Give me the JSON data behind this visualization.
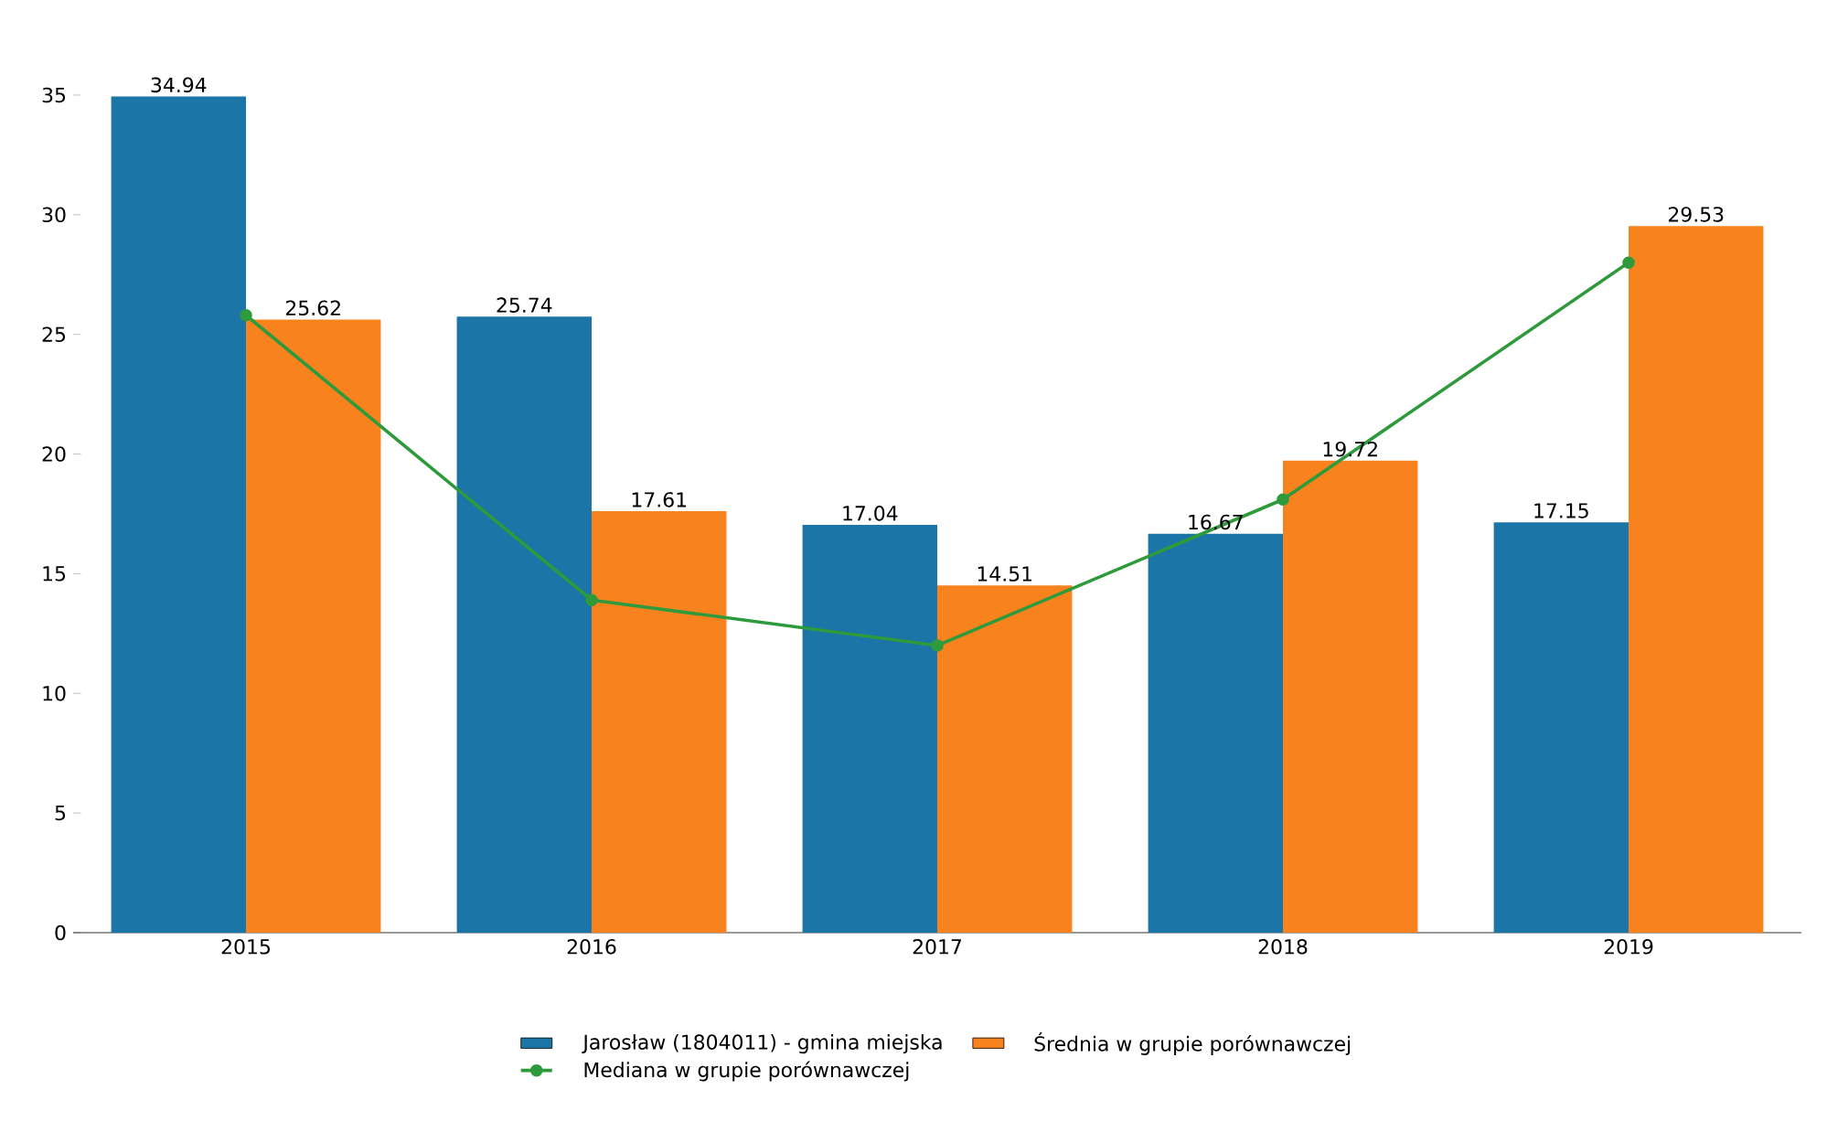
{
  "chart_data": {
    "type": "bar",
    "categories": [
      "2015",
      "2016",
      "2017",
      "2018",
      "2019"
    ],
    "series": [
      {
        "name": "Jarosław (1804011) - gmina miejska",
        "color": "#1b75a6",
        "values": [
          34.94,
          25.74,
          17.04,
          16.67,
          17.15
        ],
        "value_labels": [
          "34.94",
          "25.74",
          "17.04",
          "16.67",
          "17.15"
        ]
      },
      {
        "name": "Średnia w grupie porównawczej",
        "color": "#f7821e",
        "values": [
          25.62,
          17.61,
          14.51,
          19.72,
          29.53
        ],
        "value_labels": [
          "25.62",
          "17.61",
          "14.51",
          "19.72",
          "29.53"
        ]
      },
      {
        "name": "Mediana w grupie porównawczej",
        "type": "line",
        "color": "#2e9a3c",
        "marker": "circle",
        "values": [
          25.8,
          13.9,
          12.0,
          18.1,
          28.0
        ]
      }
    ],
    "ylim": [
      0,
      35
    ],
    "yticks": [
      0,
      5,
      10,
      15,
      20,
      25,
      30,
      35
    ],
    "legend": "bottom"
  }
}
